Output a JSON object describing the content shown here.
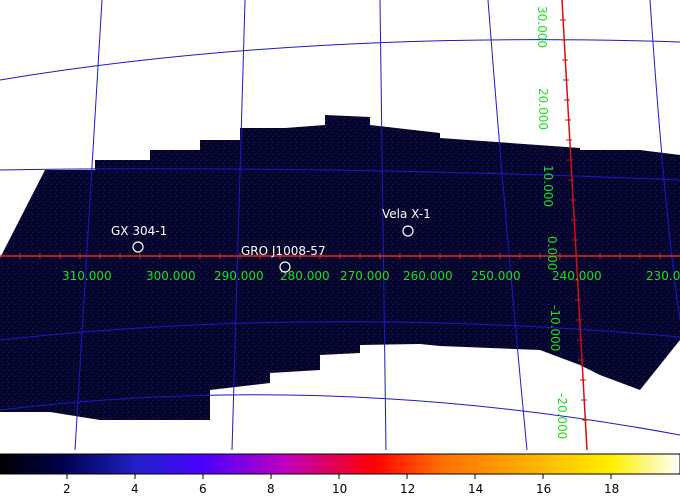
{
  "map": {
    "projection": "galactic",
    "longitude_labels": [
      "310.000",
      "300.000",
      "290.000",
      "280.000",
      "270.000",
      "260.000",
      "250.000",
      "240.000",
      "230.0"
    ],
    "latitude_labels": [
      "30.000",
      "20.000",
      "10.000",
      "0.000",
      "-10.000",
      "-20.000"
    ],
    "sources": [
      {
        "name": "GX 304-1"
      },
      {
        "name": "GRO J1008-57"
      },
      {
        "name": "Vela X-1"
      }
    ],
    "colors": {
      "background": "#ffffff",
      "grid": "#1a1acc",
      "equator": "#ee2222",
      "meridian": "#cc1111",
      "labels": "#22dd22",
      "image": "#05052a"
    }
  },
  "colorbar": {
    "ticks": [
      "2",
      "4",
      "6",
      "8",
      "10",
      "12",
      "14",
      "16",
      "18"
    ],
    "stops": [
      "#000000",
      "#00004a",
      "#2020c8",
      "#4a00ff",
      "#c000c0",
      "#ff0000",
      "#ff7000",
      "#ffb000",
      "#fff000",
      "#ffffff"
    ]
  }
}
